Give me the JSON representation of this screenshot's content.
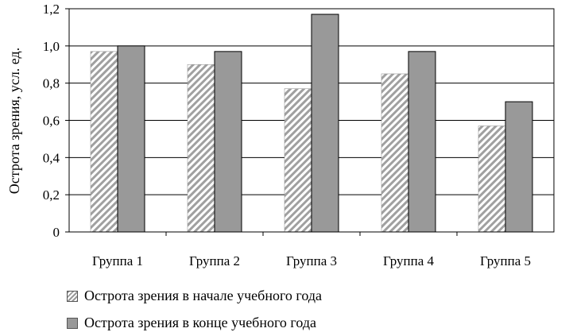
{
  "chart_data": {
    "type": "bar",
    "categories": [
      "Группа 1",
      "Группа 2",
      "Группа 3",
      "Группа 4",
      "Группа 5"
    ],
    "series": [
      {
        "name": "Острота зрения в начале учебного года",
        "values": [
          0.97,
          0.9,
          0.77,
          0.85,
          0.57
        ],
        "pattern": "hatched",
        "color": "#9a9a9a"
      },
      {
        "name": "Острота зрения в конце учебного года",
        "values": [
          1.0,
          0.97,
          1.17,
          0.97,
          0.7
        ],
        "pattern": "solid",
        "color": "#999999"
      }
    ],
    "ylabel": "Острота зрения, усл. ед.",
    "ylim": [
      0,
      1.2
    ],
    "yticks": [
      "0",
      "0,2",
      "0,4",
      "0,6",
      "0,8",
      "1,0",
      "1,2"
    ],
    "grid": true,
    "legend_position": "bottom-left"
  }
}
